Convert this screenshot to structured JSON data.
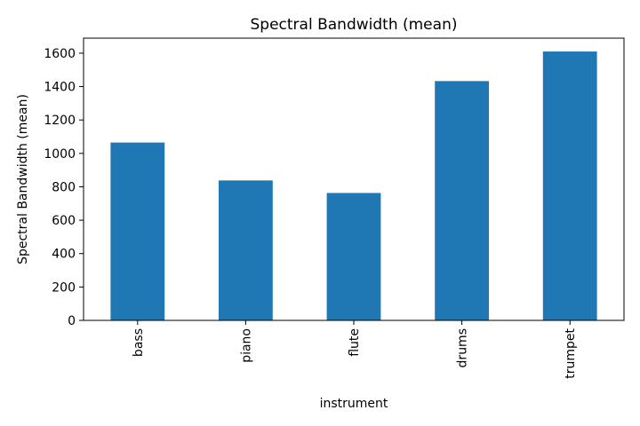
{
  "chart_data": {
    "type": "bar",
    "title": "Spectral Bandwidth (mean)",
    "xlabel": "instrument",
    "ylabel": "Spectral Bandwidth (mean)",
    "categories": [
      "bass",
      "piano",
      "flute",
      "drums",
      "trumpet"
    ],
    "values": [
      1065,
      838,
      763,
      1433,
      1610
    ],
    "ylim": [
      0,
      1690
    ],
    "yticks": [
      "0",
      "200",
      "400",
      "600",
      "800",
      "1000",
      "1200",
      "1400",
      "1600"
    ],
    "bar_color": "#1f77b4",
    "grid": false,
    "legend": "none"
  }
}
